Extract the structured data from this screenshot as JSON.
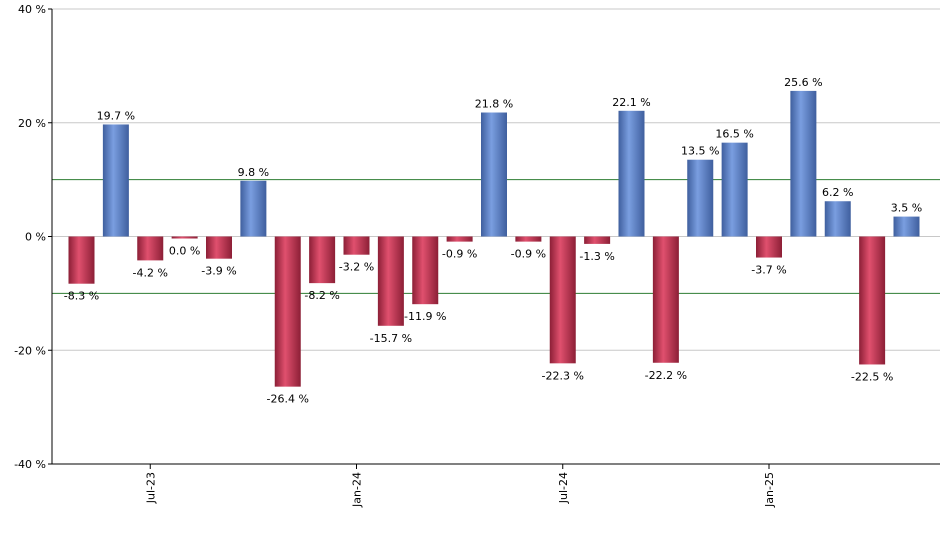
{
  "chart_data": {
    "type": "bar",
    "title": "",
    "xlabel": "",
    "ylabel": "",
    "ylim": [
      -40,
      40
    ],
    "y_ticks": [
      40,
      20,
      0,
      -20,
      -40
    ],
    "y_tick_labels": [
      "40 %",
      "20 %",
      "0 %",
      "-20 %",
      "-40 %"
    ],
    "reference_lines": [
      10,
      -10
    ],
    "grid": true,
    "values": [
      -8.3,
      19.7,
      -4.2,
      0.0,
      -3.9,
      9.8,
      -26.4,
      -8.2,
      -3.2,
      -15.7,
      -11.9,
      -0.9,
      21.8,
      -0.9,
      -22.3,
      -1.3,
      22.1,
      -22.2,
      13.5,
      16.5,
      -3.7,
      25.6,
      6.2,
      -22.5,
      3.5
    ],
    "value_labels": [
      "-8.3 %",
      "19.7 %",
      "-4.2 %",
      "0.0 %",
      "-3.9 %",
      "9.8 %",
      "-26.4 %",
      "-8.2 %",
      "-3.2 %",
      "-15.7 %",
      "-11.9 %",
      "-0.9 %",
      "21.8 %",
      "-0.9 %",
      "-22.3 %",
      "-1.3 %",
      "22.1 %",
      "-22.2 %",
      "13.5 %",
      "16.5 %",
      "-3.7 %",
      "25.6 %",
      "6.2 %",
      "-22.5 %",
      "3.5 %"
    ],
    "x_ticks": [
      {
        "label": "Jul-23",
        "bar_index": 2
      },
      {
        "label": "Jan-24",
        "bar_index": 8
      },
      {
        "label": "Jul-24",
        "bar_index": 14
      },
      {
        "label": "Jan-25",
        "bar_index": 20
      }
    ],
    "colors": {
      "positive": "#7a9ee0",
      "positive_dark": "#3f5f9e",
      "negative": "#e0506e",
      "negative_dark": "#8c1f36",
      "reference_line": "#2e7d32",
      "grid": "#c8c8c8",
      "axis": "#000000"
    }
  }
}
